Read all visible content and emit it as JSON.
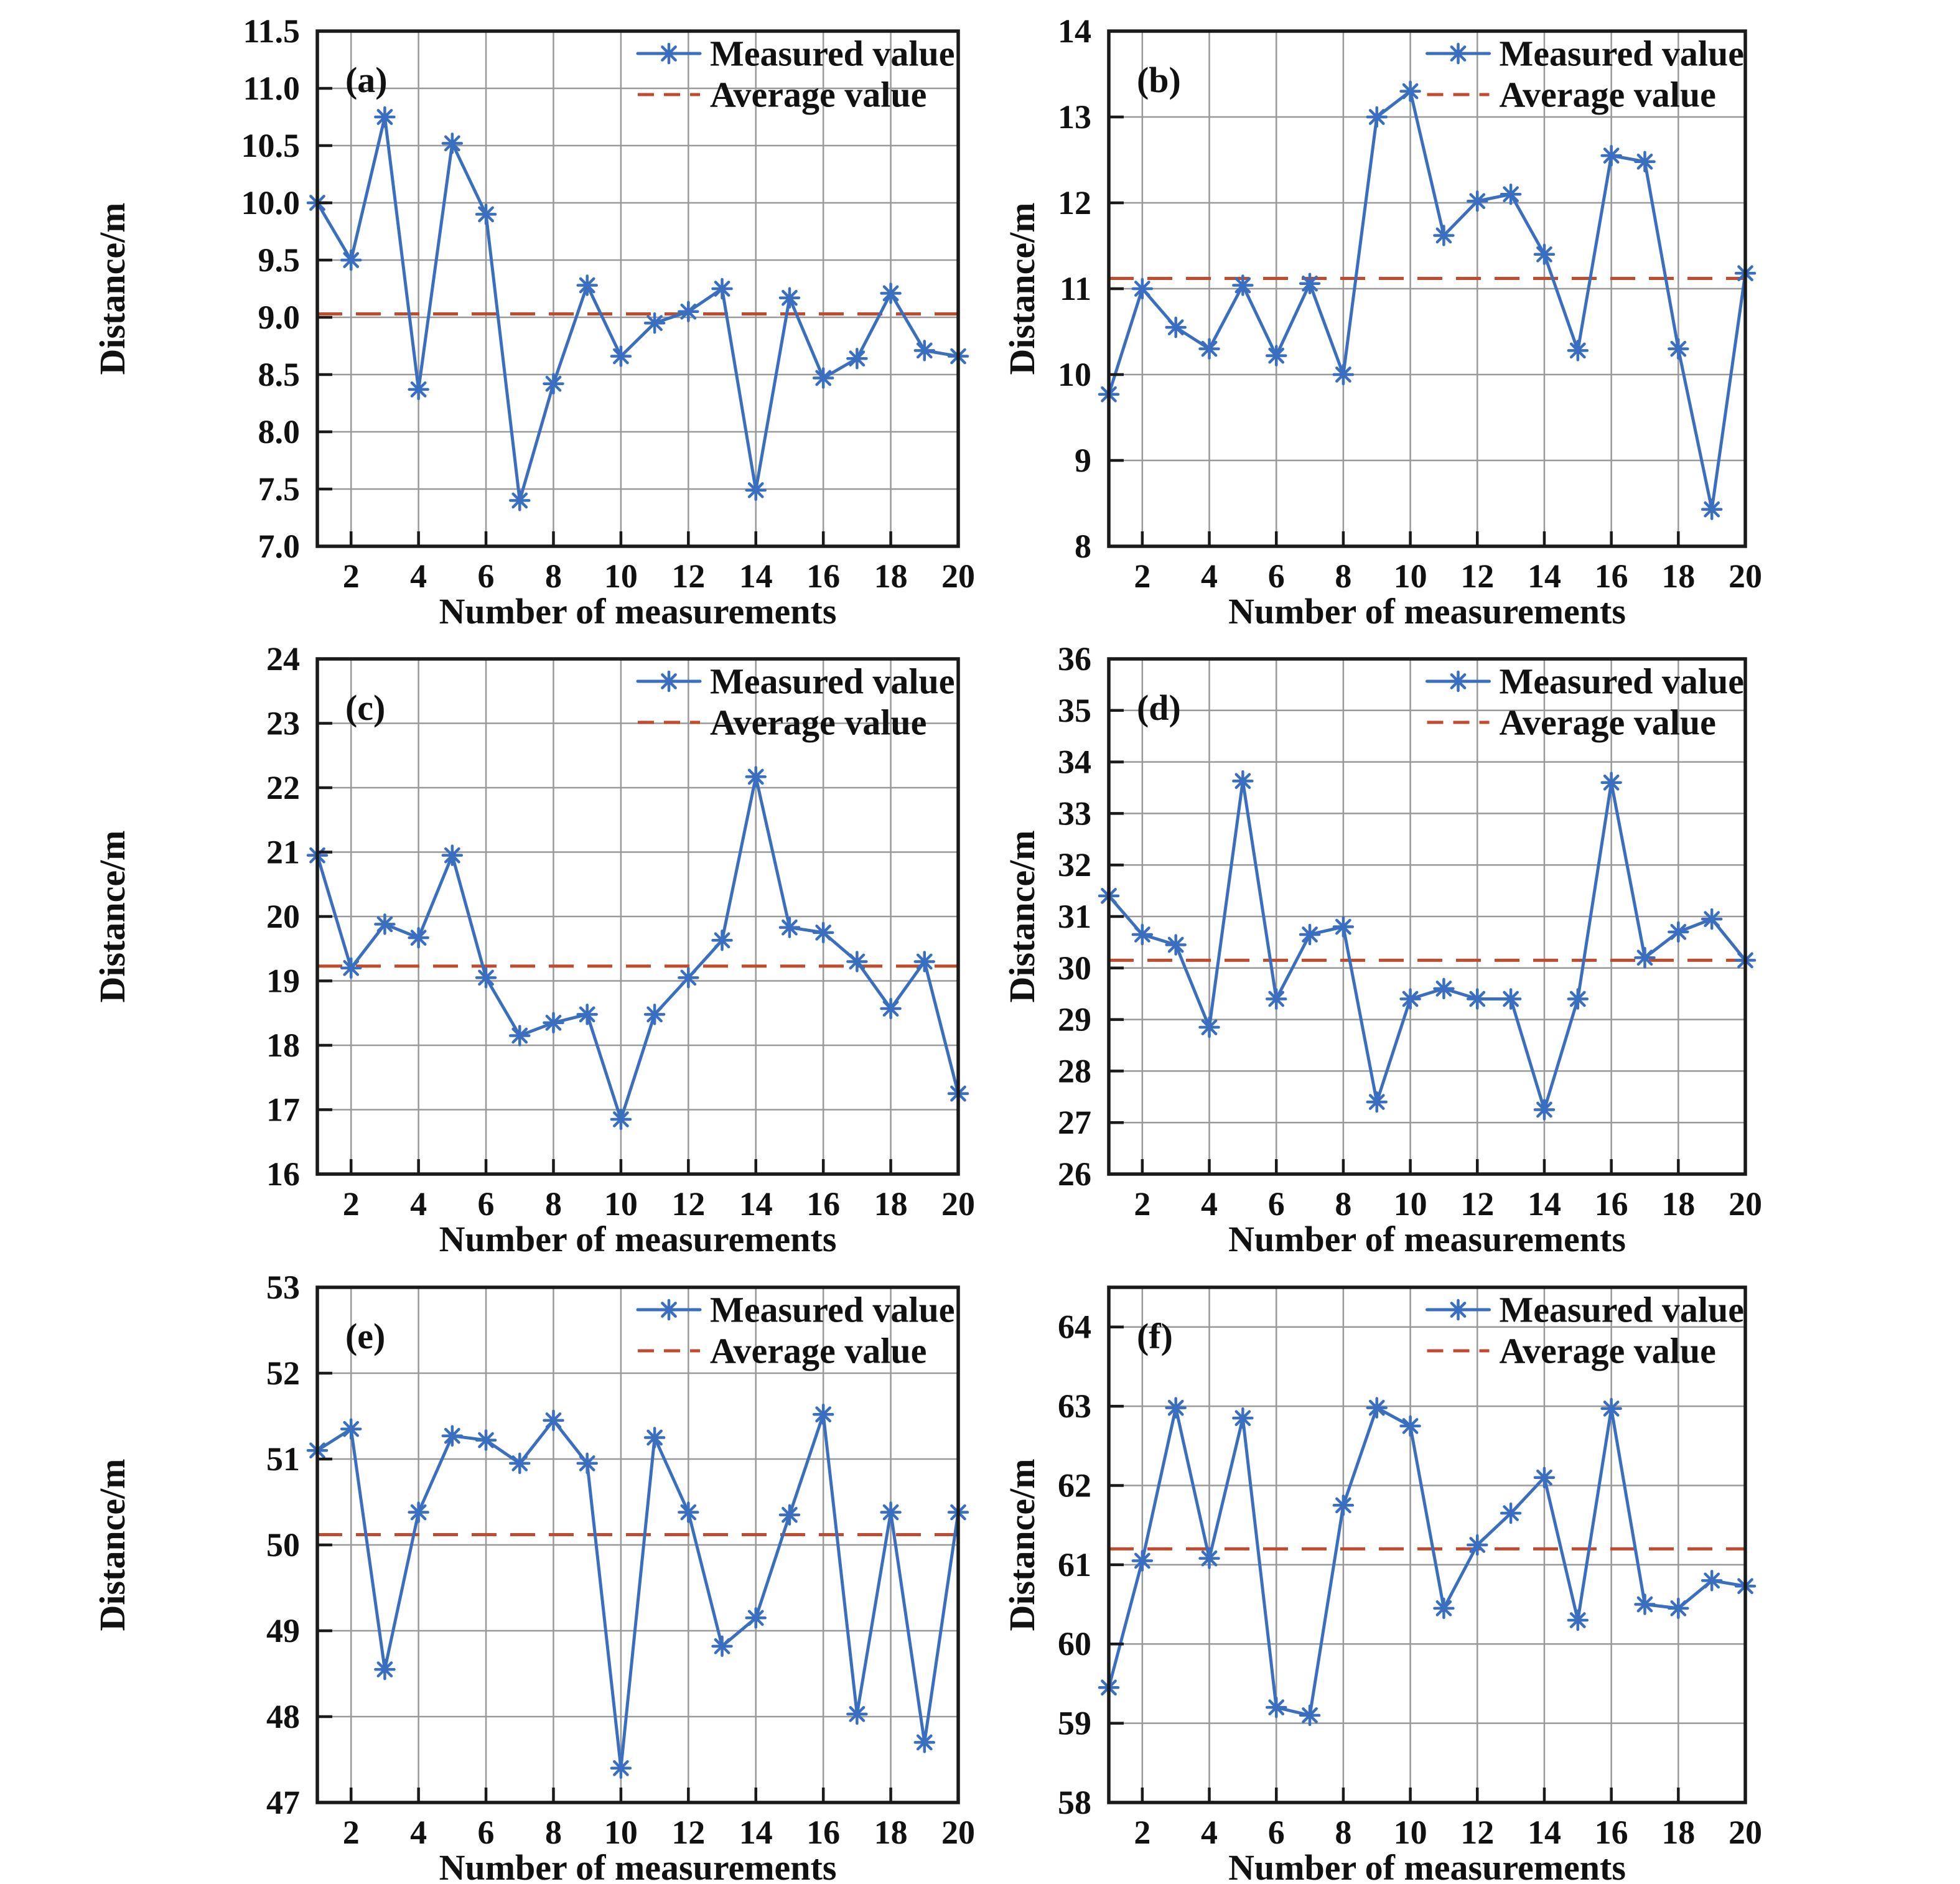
{
  "figure": {
    "background": "#ffffff",
    "colors": {
      "measured_line": "#3a6fc0",
      "average_line": "#c14b2e",
      "grid": "#999999",
      "axis": "#1a1a1a",
      "text": "#111111"
    },
    "legend": {
      "measured_label": "Measured value",
      "average_label": "Average value"
    },
    "xlabel": "Number of measurements",
    "ylabel": "Distance/m"
  },
  "chart_data": [
    {
      "type": "line",
      "panel_tag": "(a)",
      "xlabel": "Number of measurements",
      "ylabel": "Distance/m",
      "legend": [
        "Measured value",
        "Average value"
      ],
      "legend_position": "top-right",
      "grid": true,
      "x": [
        1,
        2,
        3,
        4,
        5,
        6,
        7,
        8,
        9,
        10,
        11,
        12,
        13,
        14,
        15,
        16,
        17,
        18,
        19,
        20
      ],
      "series": [
        {
          "name": "Measured value",
          "values": [
            10.0,
            9.5,
            10.75,
            8.37,
            10.52,
            9.9,
            7.4,
            8.42,
            9.28,
            8.66,
            8.95,
            9.05,
            9.25,
            7.49,
            9.17,
            8.47,
            8.64,
            9.21,
            8.71,
            8.66
          ]
        },
        {
          "name": "Average value",
          "constant": 9.03
        }
      ],
      "average": 9.03,
      "ylim": [
        7.0,
        11.5
      ],
      "ytick_values": [
        7.0,
        7.5,
        8.0,
        8.5,
        9.0,
        9.5,
        10.0,
        10.5,
        11.0,
        11.5
      ],
      "ytick_labels": [
        "7.0",
        "7.5",
        "8.0",
        "8.5",
        "9.0",
        "9.5",
        "10.0",
        "10.5",
        "11.0",
        "11.5"
      ],
      "xtick_values": [
        2,
        4,
        6,
        8,
        10,
        12,
        14,
        16,
        18,
        20
      ],
      "xtick_labels": [
        "2",
        "4",
        "6",
        "8",
        "10",
        "12",
        "14",
        "16",
        "18",
        "20"
      ]
    },
    {
      "type": "line",
      "panel_tag": "(b)",
      "xlabel": "Number of measurements",
      "ylabel": "Distance/m",
      "legend": [
        "Measured value",
        "Average value"
      ],
      "legend_position": "top-right",
      "grid": true,
      "x": [
        1,
        2,
        3,
        4,
        5,
        6,
        7,
        8,
        9,
        10,
        11,
        12,
        13,
        14,
        15,
        16,
        17,
        18,
        19,
        20
      ],
      "series": [
        {
          "name": "Measured value",
          "values": [
            9.77,
            11.0,
            10.55,
            10.3,
            11.04,
            10.22,
            11.06,
            10.0,
            13.0,
            13.3,
            11.62,
            12.02,
            12.1,
            11.4,
            10.28,
            12.55,
            12.48,
            10.3,
            8.43,
            11.18
          ]
        },
        {
          "name": "Average value",
          "constant": 11.12
        }
      ],
      "average": 11.12,
      "ylim": [
        8,
        14
      ],
      "ytick_values": [
        8,
        9,
        10,
        11,
        12,
        13,
        14
      ],
      "ytick_labels": [
        "8",
        "9",
        "10",
        "11",
        "12",
        "13",
        "14"
      ],
      "xtick_values": [
        2,
        4,
        6,
        8,
        10,
        12,
        14,
        16,
        18,
        20
      ],
      "xtick_labels": [
        "2",
        "4",
        "6",
        "8",
        "10",
        "12",
        "14",
        "16",
        "18",
        "20"
      ]
    },
    {
      "type": "line",
      "panel_tag": "(c)",
      "xlabel": "Number of measurements",
      "ylabel": "Distance/m",
      "legend": [
        "Measured value",
        "Average value"
      ],
      "legend_position": "top-right",
      "grid": true,
      "x": [
        1,
        2,
        3,
        4,
        5,
        6,
        7,
        8,
        9,
        10,
        11,
        12,
        13,
        14,
        15,
        16,
        17,
        18,
        19,
        20
      ],
      "series": [
        {
          "name": "Measured value",
          "values": [
            20.95,
            19.2,
            19.88,
            19.67,
            20.95,
            19.05,
            18.15,
            18.35,
            18.48,
            16.85,
            18.48,
            19.05,
            19.63,
            22.17,
            19.83,
            19.75,
            19.3,
            18.57,
            19.3,
            17.25
          ]
        },
        {
          "name": "Average value",
          "constant": 19.23
        }
      ],
      "average": 19.23,
      "ylim": [
        16,
        24
      ],
      "ytick_values": [
        16,
        17,
        18,
        19,
        20,
        21,
        22,
        23,
        24
      ],
      "ytick_labels": [
        "16",
        "17",
        "18",
        "19",
        "20",
        "21",
        "22",
        "23",
        "24"
      ],
      "xtick_values": [
        2,
        4,
        6,
        8,
        10,
        12,
        14,
        16,
        18,
        20
      ],
      "xtick_labels": [
        "2",
        "4",
        "6",
        "8",
        "10",
        "12",
        "14",
        "16",
        "18",
        "20"
      ]
    },
    {
      "type": "line",
      "panel_tag": "(d)",
      "xlabel": "Number of measurements",
      "ylabel": "Distance/m",
      "legend": [
        "Measured value",
        "Average value"
      ],
      "legend_position": "top-right",
      "grid": true,
      "x": [
        1,
        2,
        3,
        4,
        5,
        6,
        7,
        8,
        9,
        10,
        11,
        12,
        13,
        14,
        15,
        16,
        17,
        18,
        19,
        20
      ],
      "series": [
        {
          "name": "Measured value",
          "values": [
            31.4,
            30.65,
            30.45,
            28.85,
            33.63,
            29.4,
            30.65,
            30.8,
            27.4,
            29.4,
            29.6,
            29.4,
            29.4,
            27.25,
            29.4,
            33.6,
            30.2,
            30.7,
            30.95,
            30.15
          ]
        },
        {
          "name": "Average value",
          "constant": 30.15
        }
      ],
      "average": 30.15,
      "ylim": [
        26,
        36
      ],
      "ytick_values": [
        26,
        27,
        28,
        29,
        30,
        31,
        32,
        33,
        34,
        35,
        36
      ],
      "ytick_labels": [
        "26",
        "27",
        "28",
        "29",
        "30",
        "31",
        "32",
        "33",
        "34",
        "35",
        "36"
      ],
      "xtick_values": [
        2,
        4,
        6,
        8,
        10,
        12,
        14,
        16,
        18,
        20
      ],
      "xtick_labels": [
        "2",
        "4",
        "6",
        "8",
        "10",
        "12",
        "14",
        "16",
        "18",
        "20"
      ]
    },
    {
      "type": "line",
      "panel_tag": "(e)",
      "xlabel": "Number of measurements",
      "ylabel": "Distance/m",
      "legend": [
        "Measured value",
        "Average value"
      ],
      "legend_position": "top-right",
      "grid": true,
      "x": [
        1,
        2,
        3,
        4,
        5,
        6,
        7,
        8,
        9,
        10,
        11,
        12,
        13,
        14,
        15,
        16,
        17,
        18,
        19,
        20
      ],
      "series": [
        {
          "name": "Measured value",
          "values": [
            51.1,
            51.35,
            48.55,
            50.38,
            51.27,
            51.22,
            50.95,
            51.45,
            50.95,
            47.4,
            51.25,
            50.38,
            48.82,
            49.15,
            50.35,
            51.52,
            48.03,
            50.38,
            47.7,
            50.38
          ]
        },
        {
          "name": "Average value",
          "constant": 50.12
        }
      ],
      "average": 50.12,
      "ylim": [
        47,
        53
      ],
      "ytick_values": [
        47,
        48,
        49,
        50,
        51,
        52,
        53
      ],
      "ytick_labels": [
        "47",
        "48",
        "49",
        "50",
        "51",
        "52",
        "53"
      ],
      "xtick_values": [
        2,
        4,
        6,
        8,
        10,
        12,
        14,
        16,
        18,
        20
      ],
      "xtick_labels": [
        "2",
        "4",
        "6",
        "8",
        "10",
        "12",
        "14",
        "16",
        "18",
        "20"
      ]
    },
    {
      "type": "line",
      "panel_tag": "(f)",
      "xlabel": "Number of measurements",
      "ylabel": "Distance/m",
      "legend": [
        "Measured value",
        "Average value"
      ],
      "legend_position": "top-right",
      "grid": true,
      "x": [
        1,
        2,
        3,
        4,
        5,
        6,
        7,
        8,
        9,
        10,
        11,
        12,
        13,
        14,
        15,
        16,
        17,
        18,
        19,
        20
      ],
      "series": [
        {
          "name": "Measured value",
          "values": [
            59.45,
            61.05,
            62.98,
            61.08,
            62.85,
            59.2,
            59.1,
            61.75,
            62.98,
            62.75,
            60.45,
            61.25,
            61.65,
            62.1,
            60.3,
            62.97,
            60.5,
            60.45,
            60.8,
            60.73
          ]
        },
        {
          "name": "Average value",
          "constant": 61.2
        }
      ],
      "average": 61.2,
      "ylim": [
        58,
        64.5
      ],
      "ytick_values": [
        58,
        59,
        60,
        61,
        62,
        63,
        64
      ],
      "ytick_labels": [
        "58",
        "59",
        "60",
        "61",
        "62",
        "63",
        "64"
      ],
      "xtick_values": [
        2,
        4,
        6,
        8,
        10,
        12,
        14,
        16,
        18,
        20
      ],
      "xtick_labels": [
        "2",
        "4",
        "6",
        "8",
        "10",
        "12",
        "14",
        "16",
        "18",
        "20"
      ]
    }
  ]
}
